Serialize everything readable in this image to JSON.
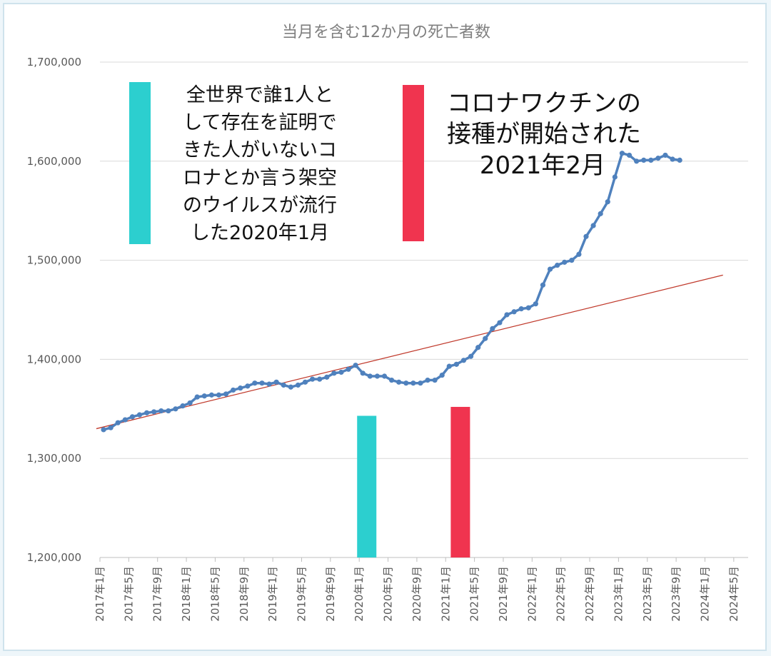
{
  "chart_data": {
    "type": "line",
    "title": "当月を含む12か月の死亡者数",
    "y_ticks": [
      "1,200,000",
      "1,300,000",
      "1,400,000",
      "1,500,000",
      "1,600,000",
      "1,700,000"
    ],
    "ylim": [
      1200000,
      1700000
    ],
    "x_tick_labels": [
      "2017年1月",
      "2017年5月",
      "2017年9月",
      "2018年1月",
      "2018年5月",
      "2018年9月",
      "2019年1月",
      "2019年5月",
      "2019年9月",
      "2020年1月",
      "2020年5月",
      "2020年9月",
      "2021年1月",
      "2021年5月",
      "2021年9月",
      "2022年1月",
      "2022年5月",
      "2022年9月",
      "2023年1月",
      "2023年5月",
      "2023年9月",
      "2024年1月",
      "2024年5月"
    ],
    "x_start": "2017-01",
    "grid": true,
    "series": [
      {
        "values": [
          1329000,
          1331000,
          1336000,
          1339000,
          1342000,
          1344000,
          1346000,
          1347000,
          1348000,
          1348000,
          1350000,
          1353000,
          1356000,
          1362000,
          1363000,
          1364000,
          1364000,
          1365000,
          1369000,
          1371000,
          1373000,
          1376000,
          1376000,
          1375000,
          1377000,
          1374000,
          1372000,
          1374000,
          1377000,
          1380000,
          1380000,
          1382000,
          1386000,
          1387000,
          1390000,
          1394000,
          1386000,
          1383000,
          1383000,
          1383000,
          1379000,
          1377000,
          1376000,
          1376000,
          1376000,
          1379000,
          1379000,
          1384000,
          1393000,
          1395000,
          1399000,
          1403000,
          1412000,
          1421000,
          1431000,
          1437000,
          1445000,
          1448000,
          1451000,
          1452000,
          1456000,
          1475000,
          1491000,
          1495000,
          1498000,
          1500000,
          1506000,
          1524000,
          1535000,
          1547000,
          1559000,
          1584000,
          1608000,
          1606000,
          1600000,
          1601000,
          1601000,
          1603000,
          1606000,
          1602000,
          1601000
        ]
      }
    ],
    "trendline": {
      "from": [
        "2016-12",
        1330000
      ],
      "to": [
        "2024-03",
        1485000
      ]
    },
    "bars": [
      {
        "x": "2020-01",
        "value": 1343000,
        "color": "#2ccfcf"
      },
      {
        "x": "2021-02",
        "value": 1352000,
        "color": "#f0344f"
      }
    ],
    "annotations": [
      {
        "lines": [
          "全世界で誰1人と",
          "して存在を証明で",
          "きた人がいないコ",
          "ロナとか言う架空",
          "のウイルスが流行",
          "した2020年1月"
        ],
        "marker_color": "#2ccfcf"
      },
      {
        "lines": [
          "コロナワクチンの",
          "接種が開始された",
          "2021年2月"
        ],
        "marker_color": "#f0344f"
      }
    ],
    "colors": {
      "line": "#4f81bd",
      "trend": "#c0392b",
      "grid": "#d9d9d9"
    }
  }
}
